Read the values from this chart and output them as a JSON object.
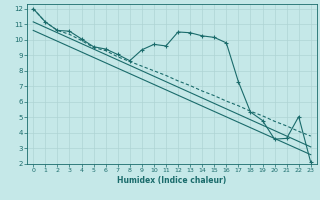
{
  "xlabel": "Humidex (Indice chaleur)",
  "background_color": "#c5e8e8",
  "grid_color": "#afd4d4",
  "line_color": "#1a6b6b",
  "xlim": [
    -0.5,
    23.5
  ],
  "ylim": [
    2,
    12.3
  ],
  "xticks": [
    0,
    1,
    2,
    3,
    4,
    5,
    6,
    7,
    8,
    9,
    10,
    11,
    12,
    13,
    14,
    15,
    16,
    17,
    18,
    19,
    20,
    21,
    22,
    23
  ],
  "yticks": [
    2,
    3,
    4,
    5,
    6,
    7,
    8,
    9,
    10,
    11,
    12
  ],
  "series_main": {
    "x": [
      0,
      1,
      2,
      3,
      4,
      5,
      6,
      7,
      8,
      9,
      10,
      11,
      12,
      13,
      14,
      15,
      16,
      17,
      18,
      19,
      20,
      21,
      22,
      23
    ],
    "y": [
      12,
      11.15,
      10.6,
      10.55,
      10.05,
      9.55,
      9.4,
      9.05,
      8.65,
      9.35,
      9.7,
      9.6,
      10.5,
      10.45,
      10.25,
      10.15,
      9.8,
      7.3,
      5.35,
      4.8,
      3.6,
      3.65,
      5.05,
      2.1
    ]
  },
  "series_linear1": {
    "x": [
      0,
      23
    ],
    "y": [
      11.15,
      3.1
    ]
  },
  "series_linear2": {
    "x": [
      0,
      23
    ],
    "y": [
      10.6,
      2.6
    ]
  },
  "series_dashed": {
    "x": [
      0,
      1,
      2,
      3,
      4,
      5,
      6,
      7,
      8,
      9,
      10,
      11,
      12,
      13,
      14,
      15,
      16,
      17,
      18,
      19,
      20,
      21,
      22,
      23
    ],
    "y": [
      12,
      11.15,
      10.6,
      10.35,
      9.95,
      9.5,
      9.3,
      8.9,
      8.6,
      8.3,
      8.0,
      7.7,
      7.35,
      7.05,
      6.7,
      6.4,
      6.05,
      5.75,
      5.4,
      5.1,
      4.75,
      4.45,
      4.1,
      3.8
    ]
  }
}
